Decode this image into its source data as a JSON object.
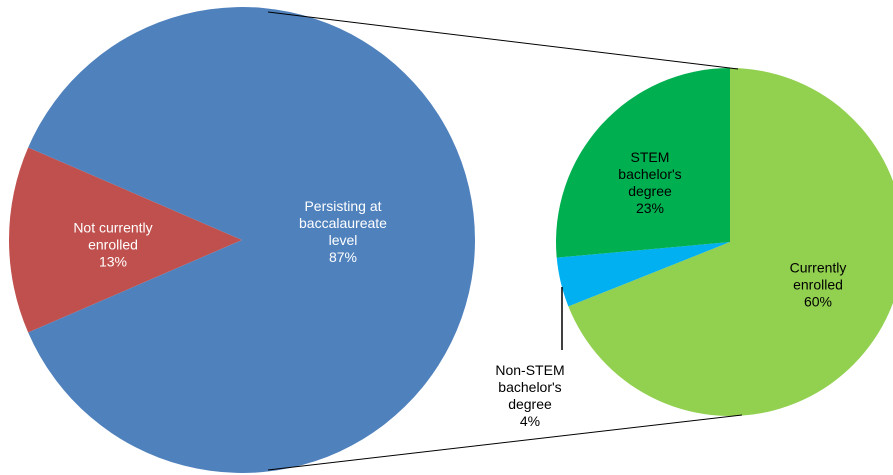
{
  "chart_data": [
    {
      "type": "pie",
      "categories": [
        "Not currently enrolled",
        "Persisting at baccalaureate level"
      ],
      "values": [
        13,
        87
      ],
      "value_labels": [
        "13%",
        "87%"
      ],
      "colors": [
        "#c0504d",
        "#4f81bd"
      ]
    },
    {
      "type": "pie",
      "categories": [
        "Currently enrolled",
        "Non-STEM bachelor's degree",
        "STEM bachelor's degree"
      ],
      "values": [
        60,
        4,
        23
      ],
      "value_labels": [
        "60%",
        "4%",
        "23%"
      ],
      "colors": [
        "#92d050",
        "#00b0f0",
        "#00b050"
      ]
    }
  ]
}
